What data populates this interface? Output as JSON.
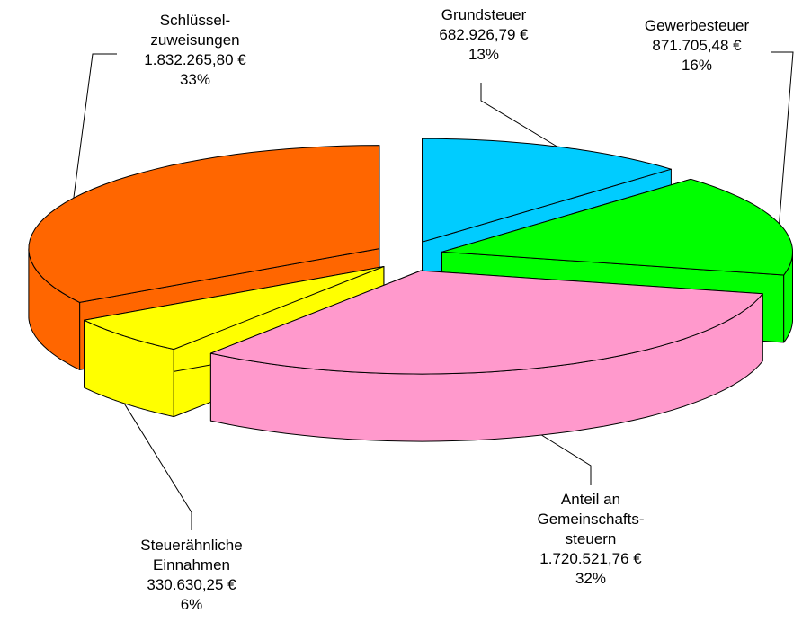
{
  "chart_data": {
    "type": "pie",
    "categories": [
      "Grundsteuer",
      "Gewerbesteuer",
      "Anteil an\nGemeinschafts-\nsteuern",
      "Steuerähnliche\nEinnahmen",
      "Schlüssel-\nzuweisungen"
    ],
    "values": [
      682926.79,
      871705.48,
      1720521.76,
      330630.25,
      1832265.8
    ],
    "value_labels": [
      "682.926,79 €",
      "871.705,48 €",
      "1.720.521,76 €",
      "330.630,25 €",
      "1.832.265,80 €"
    ],
    "percentages": [
      13,
      16,
      32,
      6,
      33
    ],
    "percentage_labels": [
      "13%",
      "16%",
      "32%",
      "6%",
      "33%"
    ],
    "colors": [
      "#00ccff",
      "#00ff00",
      "#ff99cc",
      "#ffff00",
      "#ff6600"
    ]
  }
}
